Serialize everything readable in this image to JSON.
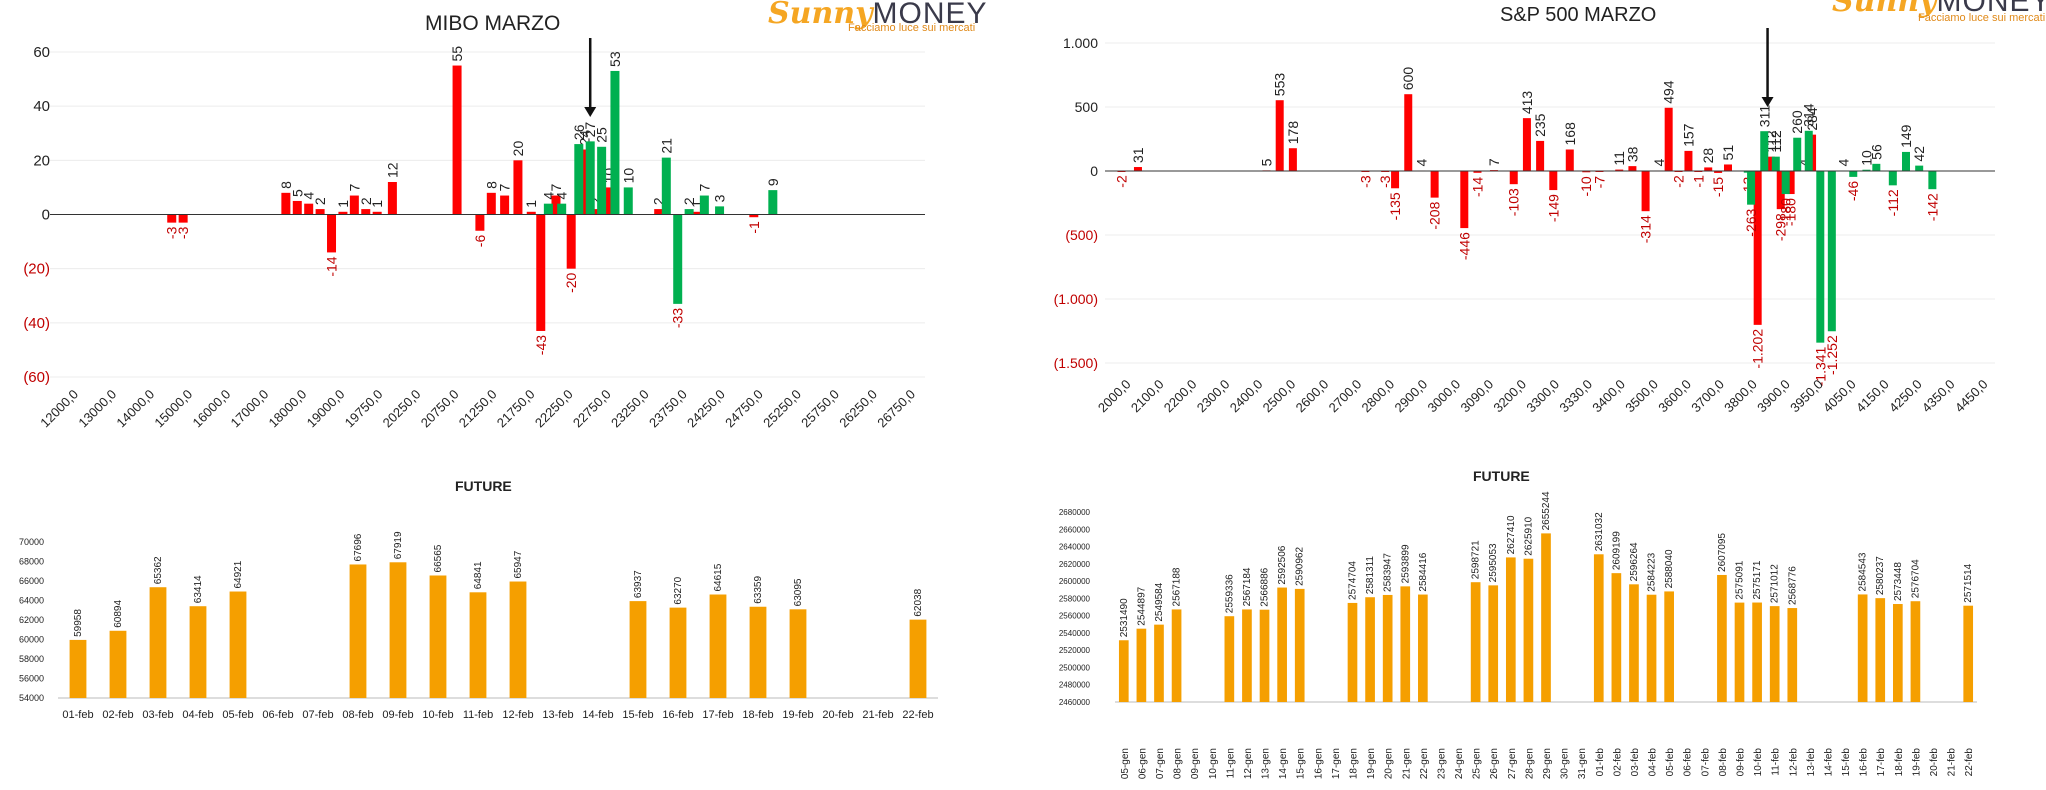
{
  "logo": {
    "sunny": "Sunny",
    "money": "MONEY",
    "tagline": "Facciamo luce sui mercati"
  },
  "panels": {
    "mibo_title": "MIBO MARZO",
    "sp_title": "S&P 500 MARZO",
    "fut_left_title": "FUTURE",
    "fut_right_title": "FUTURE"
  },
  "colors": {
    "call": "#00b050",
    "put": "#ff0000",
    "future": "#f59f00",
    "neg_axis": "#c00000"
  },
  "chart_data": [
    {
      "id": "mibo",
      "type": "bar",
      "title": "MIBO MARZO",
      "ylim": [
        -60,
        60
      ],
      "yticks": [
        60,
        40,
        20,
        0,
        -20,
        -40,
        -60
      ],
      "ytick_labels": [
        "60",
        "40",
        "20",
        "0",
        "(20)",
        "(40)",
        "(60)"
      ],
      "categories": [
        "12000,0",
        "13000,0",
        "14000,0",
        "15000,0",
        "16000,0",
        "17000,0",
        "18000,0",
        "19000,0",
        "19750,0",
        "20250,0",
        "20750,0",
        "21250,0",
        "21750,0",
        "22250,0",
        "22750,0",
        "23250,0",
        "23750,0",
        "24250,0",
        "24750,0",
        "25250,0",
        "25750,0",
        "26250,0",
        "26750,0"
      ],
      "series": [
        {
          "color": "put",
          "points": [
            [
              2.7,
              -3
            ],
            [
              3.0,
              -3
            ],
            [
              5.7,
              8
            ],
            [
              6.0,
              5
            ],
            [
              6.3,
              4
            ],
            [
              6.6,
              2
            ],
            [
              6.9,
              -14
            ],
            [
              7.2,
              1
            ],
            [
              7.5,
              7
            ],
            [
              7.8,
              2
            ],
            [
              8.1,
              1
            ],
            [
              8.5,
              12
            ],
            [
              10.2,
              55
            ],
            [
              10.8,
              -6
            ],
            [
              11.1,
              8
            ],
            [
              11.45,
              7
            ],
            [
              11.8,
              20
            ],
            [
              12.15,
              1
            ],
            [
              12.4,
              -43
            ],
            [
              12.8,
              7
            ],
            [
              13.2,
              -20
            ],
            [
              13.55,
              24
            ],
            [
              13.85,
              2
            ],
            [
              14.2,
              10
            ],
            [
              15.5,
              2
            ],
            [
              16.5,
              1
            ],
            [
              18.0,
              -1
            ]
          ]
        },
        {
          "color": "call",
          "points": [
            [
              12.6,
              4
            ],
            [
              12.95,
              4
            ],
            [
              13.4,
              26
            ],
            [
              13.7,
              27
            ],
            [
              14.0,
              25
            ],
            [
              14.35,
              53
            ],
            [
              14.7,
              10
            ],
            [
              15.7,
              21
            ],
            [
              16.0,
              -33
            ],
            [
              16.3,
              2
            ],
            [
              16.7,
              7
            ],
            [
              17.1,
              3
            ],
            [
              18.5,
              9
            ]
          ]
        }
      ],
      "arrow_at": 13.7
    },
    {
      "id": "sp500",
      "type": "bar",
      "title": "S&P 500 MARZO",
      "ylim": [
        -1500,
        1000
      ],
      "yticks": [
        1000,
        500,
        0,
        -500,
        -1000,
        -1500
      ],
      "ytick_labels": [
        "1.000",
        "500",
        "0",
        "(500)",
        "(1.000)",
        "(1.500)"
      ],
      "categories": [
        "2000,0",
        "2100,0",
        "2200,0",
        "2300,0",
        "2400,0",
        "2500,0",
        "2600,0",
        "2700,0",
        "2800,0",
        "2900,0",
        "3000,0",
        "3090,0",
        "3200,0",
        "3300,0",
        "3330,0",
        "3400,0",
        "3500,0",
        "3600,0",
        "3700,0",
        "3800,0",
        "3900,0",
        "3950,0",
        "4050,0",
        "4150,0",
        "4250,0",
        "4350,0",
        "4450,0"
      ],
      "series": [
        {
          "color": "put",
          "points": [
            [
              0.0,
              -2
            ],
            [
              0.5,
              31
            ],
            [
              4.4,
              5
            ],
            [
              4.8,
              553
            ],
            [
              5.2,
              178
            ],
            [
              7.4,
              -3
            ],
            [
              8.0,
              -3
            ],
            [
              8.3,
              -135
            ],
            [
              8.7,
              600
            ],
            [
              9.1,
              4
            ],
            [
              9.5,
              -208
            ],
            [
              10.4,
              -446
            ],
            [
              10.8,
              -14
            ],
            [
              11.3,
              7
            ],
            [
              11.9,
              -103
            ],
            [
              12.3,
              413
            ],
            [
              12.7,
              235
            ],
            [
              13.1,
              -149
            ],
            [
              13.6,
              168
            ],
            [
              14.1,
              -10
            ],
            [
              14.5,
              -7
            ],
            [
              15.1,
              11
            ],
            [
              15.5,
              38
            ],
            [
              15.9,
              -314
            ],
            [
              16.3,
              4
            ],
            [
              16.6,
              494
            ],
            [
              16.9,
              -2
            ],
            [
              17.2,
              157
            ],
            [
              17.5,
              -1
            ],
            [
              17.8,
              28
            ],
            [
              18.1,
              -15
            ],
            [
              18.4,
              51
            ],
            [
              19.3,
              -1202
            ],
            [
              19.7,
              112
            ],
            [
              20.0,
              -298
            ],
            [
              20.3,
              -180
            ],
            [
              20.7,
              4
            ],
            [
              20.95,
              284
            ]
          ]
        },
        {
          "color": "call",
          "points": [
            [
              19.0,
              -13
            ],
            [
              19.1,
              -263
            ],
            [
              19.5,
              311
            ],
            [
              19.85,
              112
            ],
            [
              20.15,
              -180
            ],
            [
              20.5,
              260
            ],
            [
              20.85,
              314
            ],
            [
              21.2,
              -1341
            ],
            [
              21.55,
              -1252
            ],
            [
              21.9,
              4
            ],
            [
              22.2,
              -46
            ],
            [
              22.6,
              10
            ],
            [
              22.9,
              56
            ],
            [
              23.4,
              -112
            ],
            [
              23.8,
              149
            ],
            [
              24.2,
              42
            ],
            [
              24.6,
              -142
            ]
          ]
        }
      ],
      "arrow_at": 19.6
    },
    {
      "id": "future-mibo",
      "type": "bar",
      "title": "FUTURE",
      "ylim": [
        54000,
        70000
      ],
      "yticks": [
        70000,
        68000,
        66000,
        64000,
        62000,
        60000,
        58000,
        56000,
        54000
      ],
      "categories": [
        "01-feb",
        "02-feb",
        "03-feb",
        "04-feb",
        "05-feb",
        "06-feb",
        "07-feb",
        "08-feb",
        "09-feb",
        "10-feb",
        "11-feb",
        "12-feb",
        "13-feb",
        "14-feb",
        "15-feb",
        "16-feb",
        "17-feb",
        "18-feb",
        "19-feb",
        "20-feb",
        "21-feb",
        "22-feb"
      ],
      "values": [
        59958,
        60894,
        65362,
        63414,
        64921,
        null,
        null,
        67696,
        67919,
        66565,
        64841,
        65947,
        null,
        null,
        63937,
        63270,
        64615,
        63359,
        63095,
        null,
        null,
        62038
      ]
    },
    {
      "id": "future-sp",
      "type": "bar",
      "title": "FUTURE",
      "ylim": [
        2460000,
        2680000
      ],
      "yticks": [
        2680000,
        2660000,
        2640000,
        2620000,
        2600000,
        2580000,
        2560000,
        2540000,
        2520000,
        2500000,
        2480000,
        2460000
      ],
      "categories": [
        "05-gen",
        "06-gen",
        "07-gen",
        "08-gen",
        "09-gen",
        "10-gen",
        "11-gen",
        "12-gen",
        "13-gen",
        "14-gen",
        "15-gen",
        "16-gen",
        "17-gen",
        "18-gen",
        "19-gen",
        "20-gen",
        "21-gen",
        "22-gen",
        "23-gen",
        "24-gen",
        "25-gen",
        "26-gen",
        "27-gen",
        "28-gen",
        "29-gen",
        "30-gen",
        "31-gen",
        "01-feb",
        "02-feb",
        "03-feb",
        "04-feb",
        "05-feb",
        "06-feb",
        "07-feb",
        "08-feb",
        "09-feb",
        "10-feb",
        "11-feb",
        "12-feb",
        "13-feb",
        "14-feb",
        "15-feb",
        "16-feb",
        "17-feb",
        "18-feb",
        "19-feb",
        "20-feb",
        "21-feb",
        "22-feb"
      ],
      "values": [
        2531490,
        2544897,
        2549584,
        2567188,
        null,
        null,
        2559336,
        2567184,
        2566886,
        2592506,
        2590962,
        null,
        null,
        2574704,
        2581311,
        2583947,
        2593899,
        2584416,
        null,
        null,
        2598721,
        2595053,
        2627410,
        2625910,
        2655244,
        null,
        null,
        2631032,
        2609199,
        2596264,
        2584223,
        2588040,
        null,
        null,
        2607095,
        2575091,
        2575171,
        2571012,
        2568776,
        null,
        null,
        null,
        2584543,
        2580237,
        2573448,
        2576704,
        null,
        null,
        2571514
      ]
    }
  ]
}
